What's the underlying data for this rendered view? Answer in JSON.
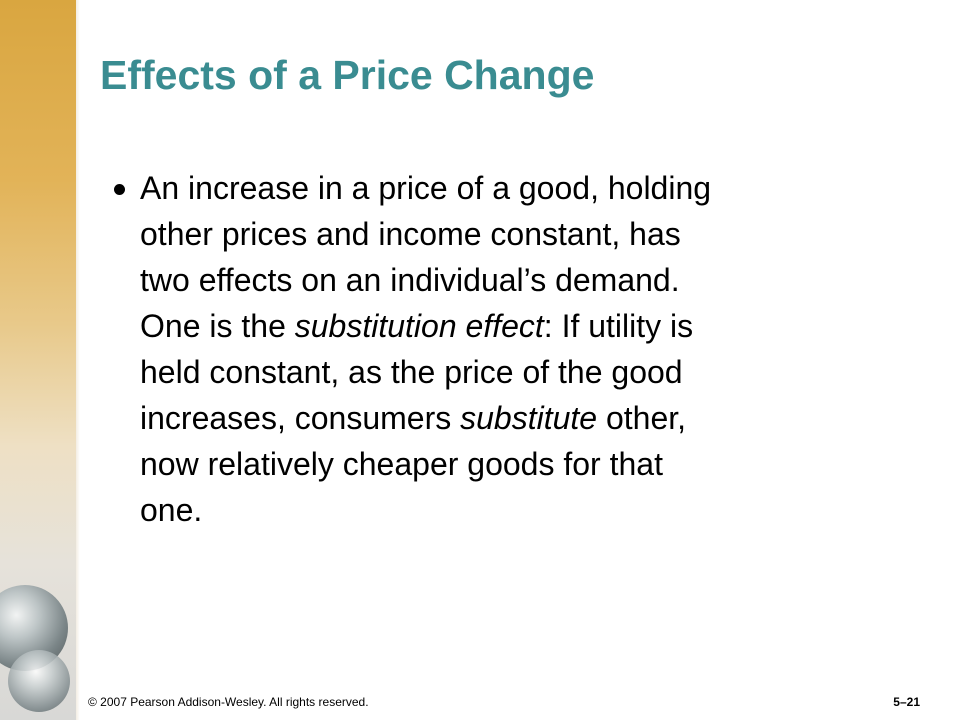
{
  "slide": {
    "title": "Effects of a Price Change",
    "bullet": {
      "lines": [
        [
          {
            "text": "An increase in a price of a good, holding"
          }
        ],
        [
          {
            "text": "other prices and income constant, has"
          }
        ],
        [
          {
            "text": "two effects on an individual’s demand."
          }
        ],
        [
          {
            "text": "One is the "
          },
          {
            "text": "substitution effect",
            "italic": true
          },
          {
            "text": ": If utility is"
          }
        ],
        [
          {
            "text": "held constant, as the price of the good"
          }
        ],
        [
          {
            "text": "increases, consumers "
          },
          {
            "text": "substitute",
            "italic": true
          },
          {
            "text": " other,"
          }
        ],
        [
          {
            "text": "now relatively cheaper goods for that"
          }
        ],
        [
          {
            "text": "one."
          }
        ]
      ]
    },
    "footer": "© 2007 Pearson Addison-Wesley. All rights reserved.",
    "slide_number": "5–21"
  }
}
